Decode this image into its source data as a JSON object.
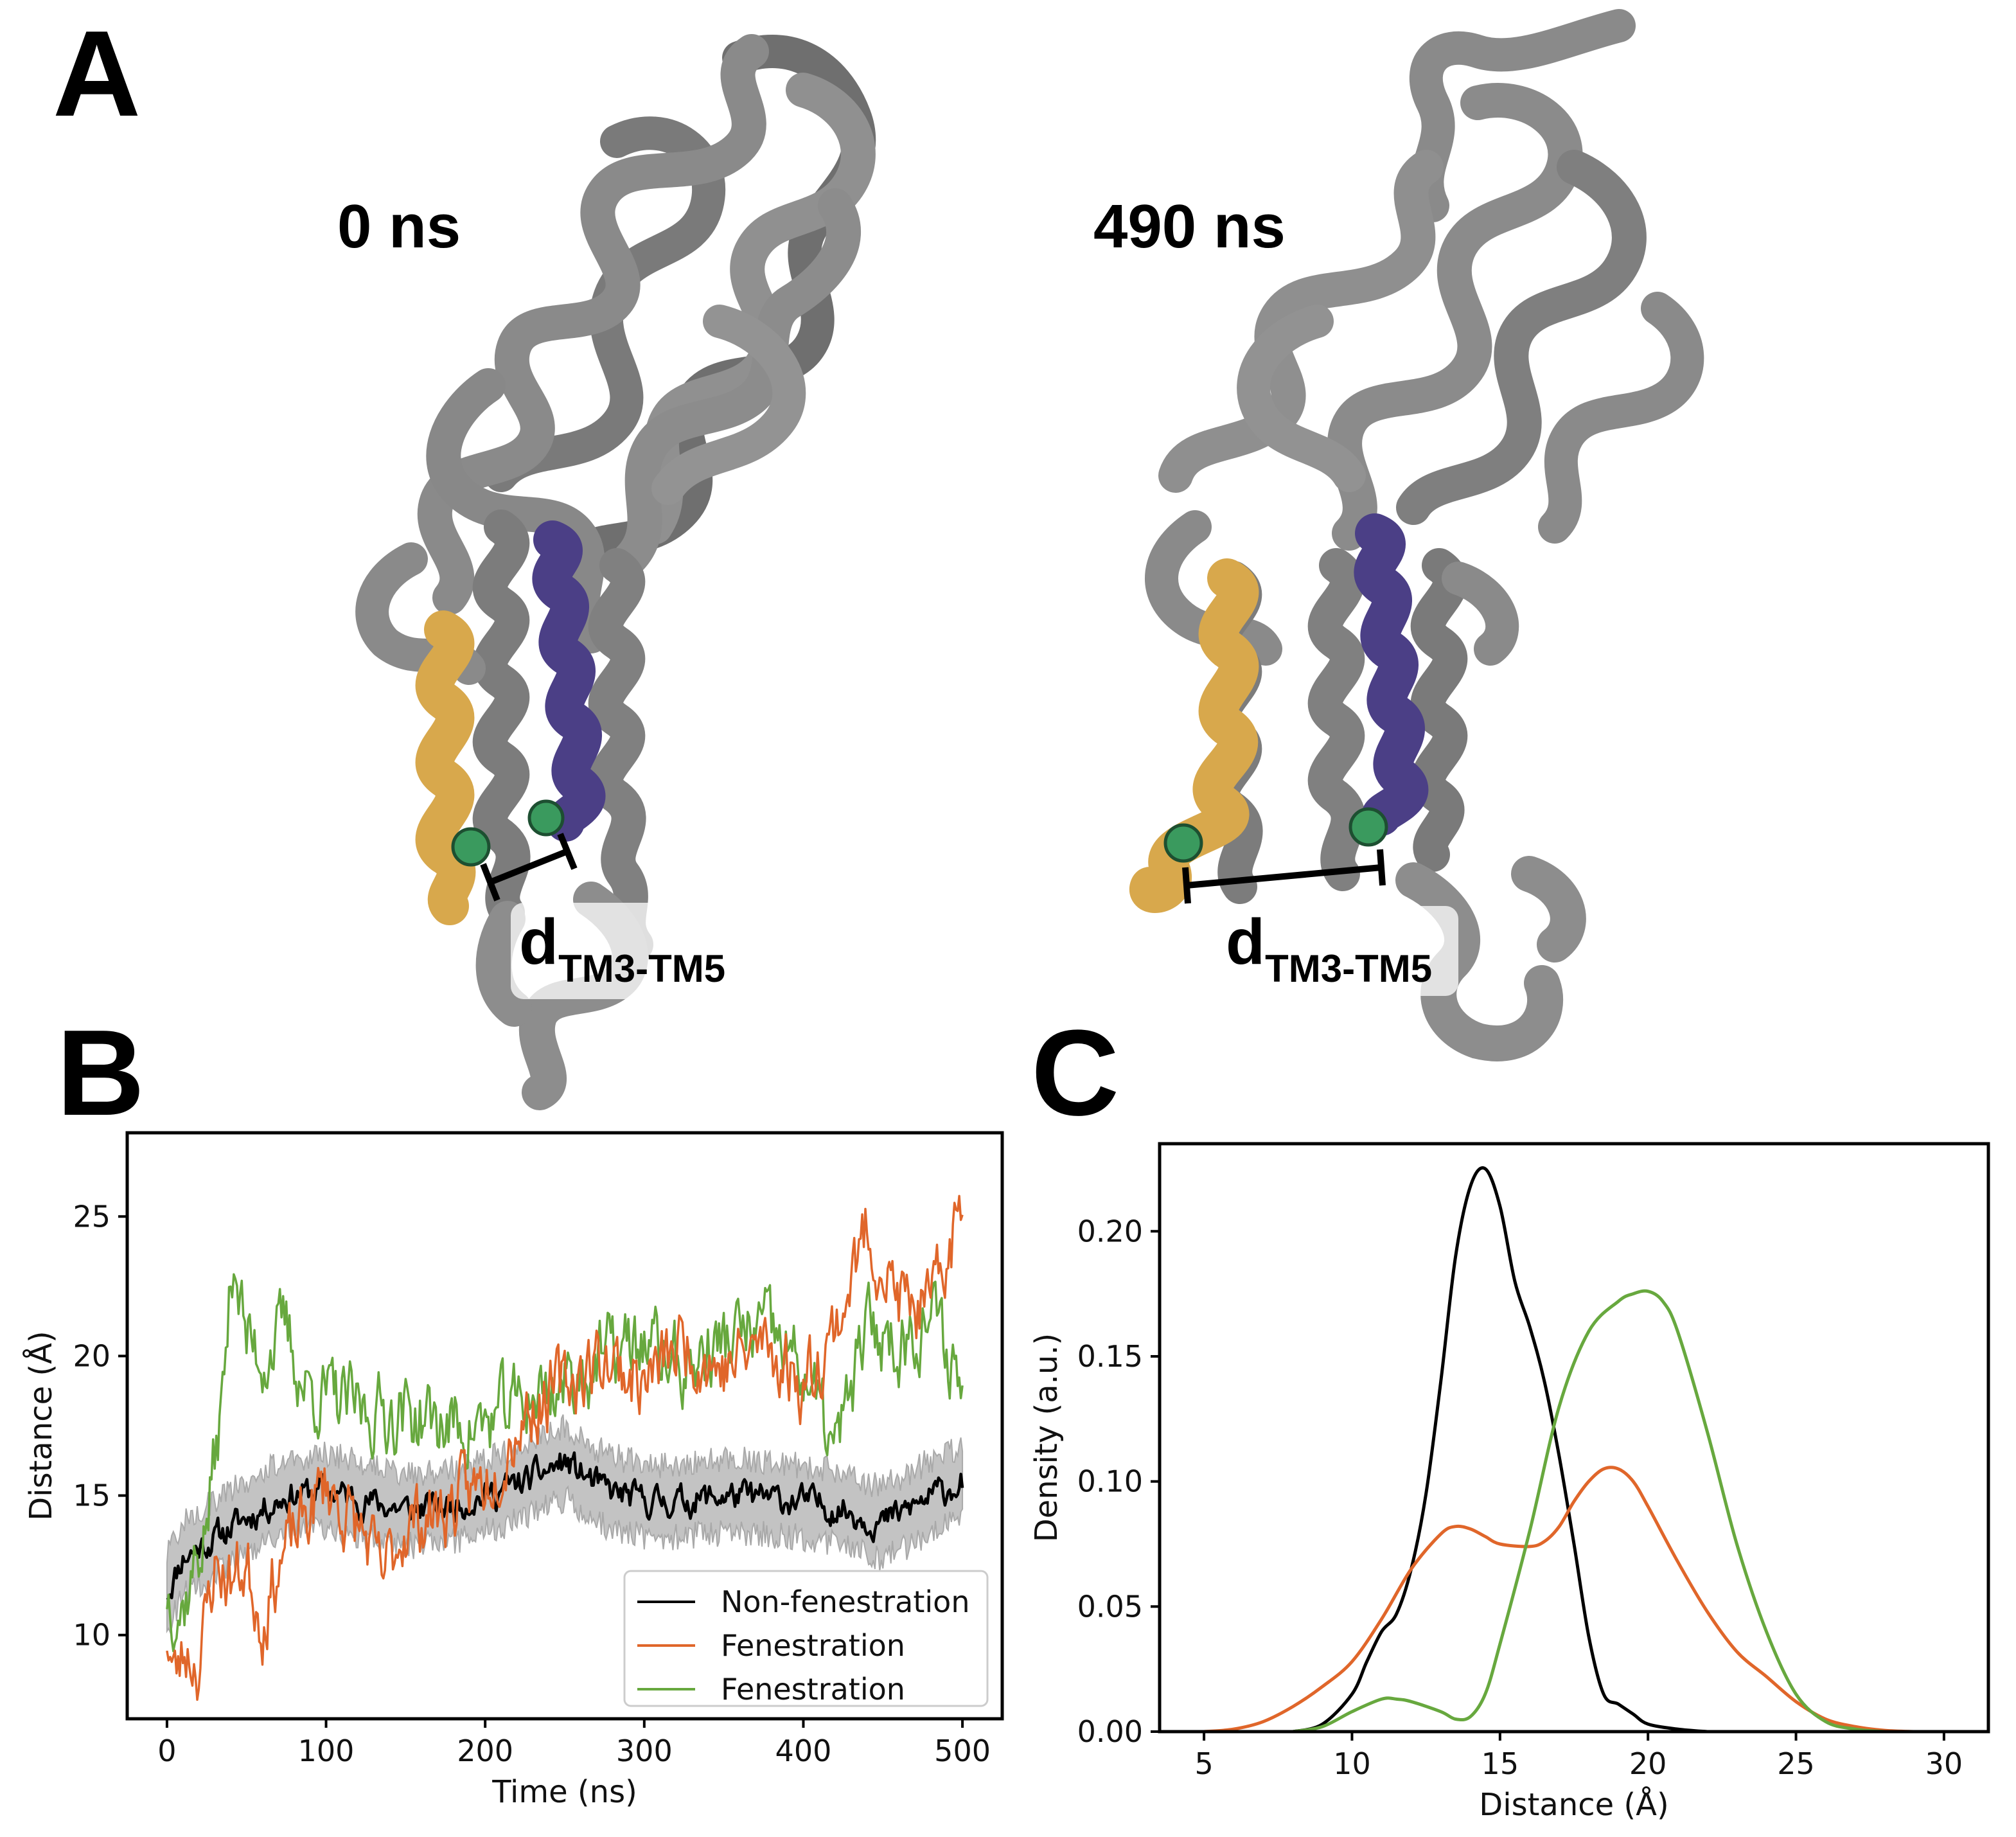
{
  "panels": {
    "A": {
      "letter": "A",
      "time_left": "0 ns",
      "time_right": "490 ns",
      "distance_label": "d",
      "distance_sub": "TM3-TM5",
      "colors": {
        "backbone": "#878787",
        "tm3": "#d8a84c",
        "tm5": "#4b3f86",
        "marker": "#3a9a5e"
      }
    },
    "B": {
      "letter": "B"
    },
    "C": {
      "letter": "C"
    }
  },
  "chart_data": [
    {
      "type": "line",
      "panel": "B",
      "xlabel": "Time (ns)",
      "ylabel": "Distance (Å)",
      "xlim": [
        -25,
        525
      ],
      "ylim": [
        7,
        28
      ],
      "xticks": [
        0,
        100,
        200,
        300,
        400,
        500
      ],
      "yticks": [
        10,
        15,
        20,
        25
      ],
      "legend": "bottom-right",
      "series": [
        {
          "name": "Non-fenestration",
          "color": "#000000",
          "band_color": "#b9b9b9",
          "band_halfwidth": 1.3,
          "x": [
            0,
            10,
            25,
            50,
            75,
            100,
            125,
            150,
            175,
            200,
            225,
            250,
            275,
            300,
            325,
            350,
            375,
            400,
            425,
            450,
            475,
            500
          ],
          "y": [
            11.5,
            12.8,
            13.3,
            14.2,
            15.0,
            15.2,
            14.8,
            14.5,
            14.6,
            15.0,
            15.5,
            16.2,
            15.2,
            14.8,
            14.8,
            15.0,
            14.9,
            14.8,
            14.5,
            14.0,
            14.8,
            15.5
          ]
        },
        {
          "name": "Fenestration",
          "color": "#e0662a",
          "x": [
            0,
            5,
            12,
            20,
            30,
            40,
            50,
            60,
            70,
            80,
            90,
            100,
            110,
            125,
            135,
            150,
            175,
            200,
            225,
            250,
            275,
            300,
            325,
            350,
            375,
            400,
            420,
            440,
            460,
            480,
            500
          ],
          "y": [
            10.0,
            8.5,
            9.5,
            9.0,
            12.5,
            12.0,
            12.5,
            10.5,
            12.5,
            13.5,
            14.5,
            15.5,
            14.5,
            13.5,
            12.0,
            14.0,
            14.5,
            15.5,
            18.0,
            19.0,
            20.0,
            19.0,
            20.5,
            19.5,
            20.5,
            19.0,
            21.0,
            24.5,
            22.0,
            21.5,
            25.5
          ]
        },
        {
          "name": "Fenestration",
          "color": "#67a83e",
          "x": [
            0,
            10,
            25,
            35,
            42,
            50,
            60,
            75,
            85,
            100,
            125,
            150,
            175,
            200,
            225,
            250,
            275,
            300,
            325,
            350,
            375,
            400,
            420,
            440,
            460,
            480,
            500
          ],
          "y": [
            11.5,
            11.0,
            14.0,
            18.5,
            24.0,
            20.5,
            20.0,
            21.0,
            19.0,
            18.5,
            18.0,
            18.0,
            17.5,
            17.5,
            18.5,
            19.0,
            20.0,
            20.5,
            19.5,
            20.5,
            21.0,
            19.5,
            16.5,
            21.0,
            20.5,
            21.5,
            19.0
          ]
        }
      ]
    },
    {
      "type": "line",
      "panel": "C",
      "xlabel": "Distance (Å)",
      "ylabel": "Density (a.u.)",
      "xlim": [
        3.5,
        31.5
      ],
      "ylim": [
        0,
        0.235
      ],
      "xticks": [
        5,
        10,
        15,
        20,
        25,
        30
      ],
      "yticks": [
        0.0,
        0.05,
        0.1,
        0.15,
        0.2
      ],
      "series": [
        {
          "name": "Non-fenestration",
          "color": "#000000",
          "x": [
            8,
            9,
            10,
            10.5,
            11,
            11.5,
            12,
            12.5,
            13,
            13.5,
            14,
            14.5,
            15,
            15.5,
            16,
            16.5,
            17,
            17.5,
            18,
            18.5,
            19,
            19.5,
            20,
            21,
            22
          ],
          "y": [
            0.0,
            0.003,
            0.015,
            0.028,
            0.04,
            0.047,
            0.065,
            0.095,
            0.14,
            0.19,
            0.218,
            0.225,
            0.21,
            0.18,
            0.162,
            0.14,
            0.11,
            0.075,
            0.038,
            0.015,
            0.011,
            0.007,
            0.003,
            0.001,
            0.0
          ]
        },
        {
          "name": "Fenestration",
          "color": "#e0662a",
          "x": [
            5,
            6,
            7,
            8,
            9,
            10,
            11,
            12,
            13,
            13.5,
            14,
            14.5,
            15,
            16,
            16.5,
            17,
            17.5,
            18,
            18.5,
            19,
            19.5,
            20,
            21,
            22,
            23,
            24,
            25,
            26,
            27,
            28,
            29
          ],
          "y": [
            0.0,
            0.001,
            0.004,
            0.01,
            0.018,
            0.028,
            0.045,
            0.065,
            0.079,
            0.082,
            0.081,
            0.078,
            0.075,
            0.074,
            0.076,
            0.082,
            0.092,
            0.1,
            0.105,
            0.105,
            0.1,
            0.09,
            0.068,
            0.048,
            0.032,
            0.022,
            0.012,
            0.005,
            0.002,
            0.0005,
            0.0
          ]
        },
        {
          "name": "Fenestration",
          "color": "#67a83e",
          "x": [
            8,
            9,
            10,
            11,
            11.5,
            12,
            13,
            13.5,
            14,
            14.5,
            15,
            16,
            17,
            18,
            19,
            19.5,
            20,
            20.5,
            21,
            22,
            23,
            24,
            25,
            26,
            27,
            28
          ],
          "y": [
            0.0,
            0.002,
            0.008,
            0.013,
            0.013,
            0.012,
            0.008,
            0.005,
            0.006,
            0.015,
            0.035,
            0.08,
            0.13,
            0.16,
            0.172,
            0.175,
            0.176,
            0.172,
            0.16,
            0.12,
            0.075,
            0.04,
            0.015,
            0.004,
            0.001,
            0.0
          ]
        }
      ]
    }
  ]
}
